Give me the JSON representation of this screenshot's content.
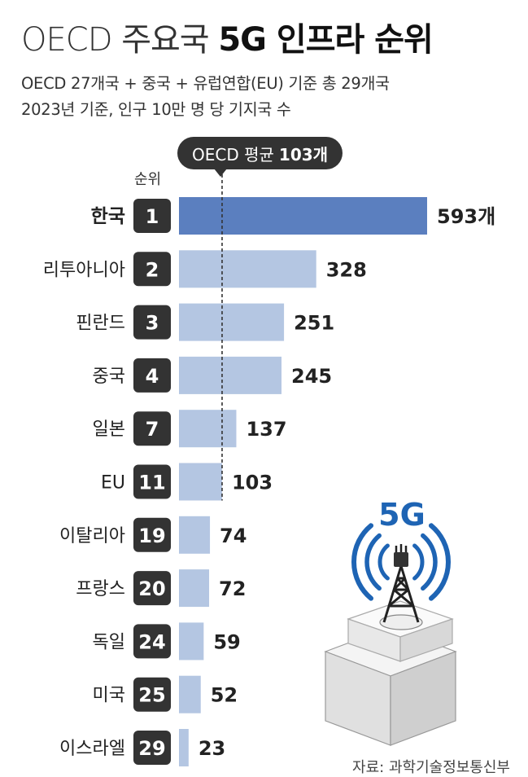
{
  "title": {
    "light": "OECD 주요국",
    "bold": "5G 인프라 순위"
  },
  "subtitle_lines": [
    "OECD 27개국 + 중국 + 유럽연합(EU) 기준 총 29개국",
    "2023년 기준, 인구 10만 명 당 기지국 수"
  ],
  "average_badge": {
    "label": "OECD 평균",
    "value": "103개"
  },
  "rank_header": "순위",
  "source": "자료: 과학기술정보통신부",
  "illustration_label": "5G",
  "colors": {
    "highlight_bar": "#5b7fbf",
    "bar": "#b4c6e2",
    "rank_box": "#333333",
    "accent_blue": "#1e64b4"
  },
  "chart_data": {
    "type": "bar",
    "orientation": "horizontal",
    "categories": [
      "한국",
      "리투아니아",
      "핀란드",
      "중국",
      "일본",
      "EU",
      "이탈리아",
      "프랑스",
      "독일",
      "미국",
      "이스라엘"
    ],
    "ranks": [
      "1",
      "2",
      "3",
      "4",
      "7",
      "11",
      "19",
      "20",
      "24",
      "25",
      "29"
    ],
    "values": [
      593,
      328,
      251,
      245,
      137,
      103,
      74,
      72,
      59,
      52,
      23
    ],
    "value_labels": [
      "593개",
      "328",
      "251",
      "245",
      "137",
      "103",
      "74",
      "72",
      "59",
      "52",
      "23"
    ],
    "highlight_category": "한국",
    "reference_line": {
      "value": 103
    }
  }
}
